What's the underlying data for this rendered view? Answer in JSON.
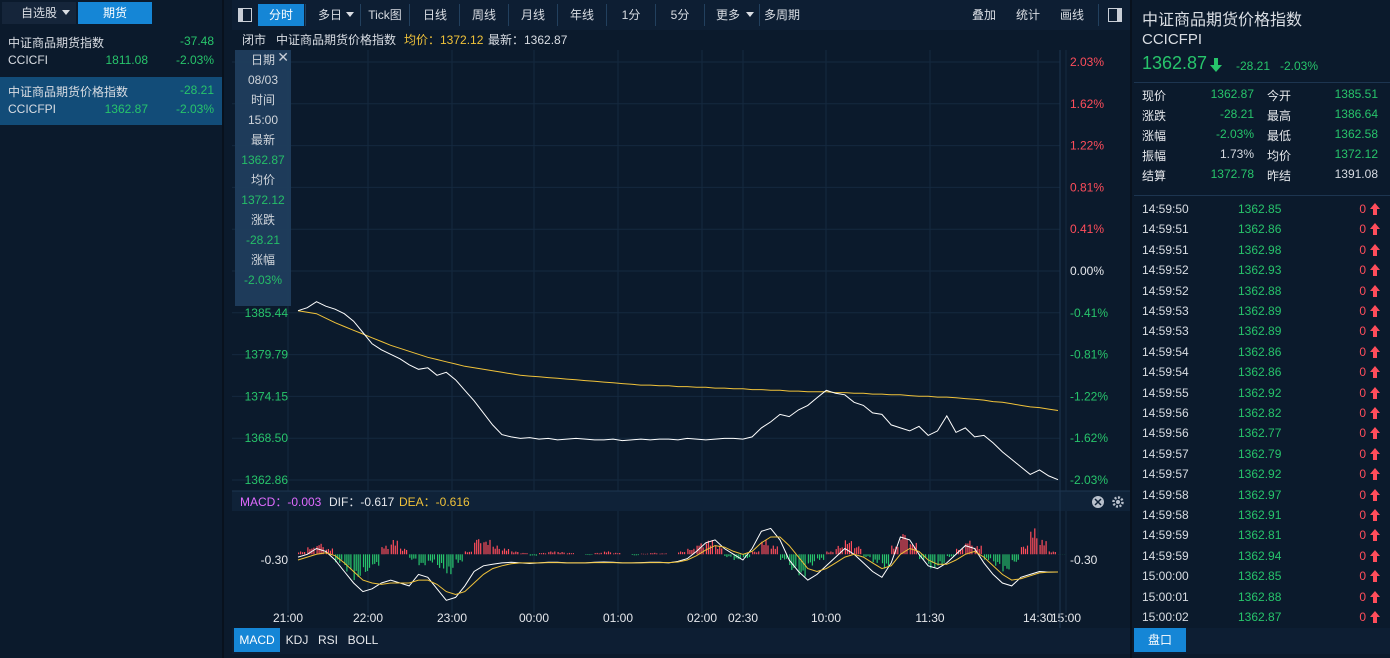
{
  "colors": {
    "up": "#ff4d5b",
    "down": "#27c46b",
    "avg": "#f0c23a",
    "accent": "#1586d6"
  },
  "left": {
    "tabs": [
      {
        "label": "自选股"
      },
      {
        "label": "期货"
      }
    ],
    "items": [
      {
        "name": "中证商品期货指数",
        "code": "CCICFI",
        "price": "1811.08",
        "change": "-37.48",
        "pct": "-2.03%"
      },
      {
        "name": "中证商品期货价格指数",
        "code": "CCICFPI",
        "price": "1362.87",
        "change": "-28.21",
        "pct": "-2.03%"
      }
    ]
  },
  "toolbar": {
    "buttons": [
      "分时",
      "多日",
      "Tick图",
      "日线",
      "周线",
      "月线",
      "年线",
      "1分",
      "5分",
      "更多",
      "多周期"
    ],
    "right_buttons": [
      "叠加",
      "统计",
      "画线"
    ]
  },
  "infobar": {
    "status": "闭市",
    "name": "中证商品期货价格指数",
    "avg_label": "均价：1372.12",
    "latest_label": "最新：1362.87"
  },
  "tooltip": {
    "date_label": "日期",
    "date": "08/03",
    "time_label": "时间",
    "time": "15:00",
    "latest_label": "最新",
    "latest": "1362.87",
    "avg_label": "均价",
    "avg": "1372.12",
    "change_label": "涨跌",
    "change": "-28.21",
    "pct_label": "涨幅",
    "pct": "-2.03%"
  },
  "chart_data": [
    {
      "type": "line",
      "title": "",
      "left_ticks": [
        "1385.44",
        "1379.79",
        "1374.15",
        "1368.50",
        "1362.86"
      ],
      "right_ticks_up": [
        "2.03%",
        "1.62%",
        "1.22%",
        "0.81%",
        "0.41%"
      ],
      "right_zero": "0.00%",
      "right_ticks_down": [
        "-0.41%",
        "-0.81%",
        "-1.22%",
        "-1.62%",
        "-2.03%"
      ],
      "x_ticks": [
        "21:00",
        "22:00",
        "23:00",
        "00:00",
        "01:00",
        "02:00",
        "02:30",
        "10:00",
        "11:30",
        "14:30",
        "15:00"
      ],
      "ylim": [
        1362.86,
        1418.52
      ],
      "prev_settle": 1391.08,
      "series": [
        {
          "name": "最新",
          "values": [
            1385.4,
            1385.8,
            1386.6,
            1386.0,
            1385.6,
            1385.0,
            1384.0,
            1382.5,
            1381.0,
            1380.2,
            1379.6,
            1379.0,
            1378.2,
            1377.6,
            1377.8,
            1376.8,
            1377.2,
            1376.2,
            1374.8,
            1373.4,
            1371.8,
            1370.2,
            1368.9,
            1368.6,
            1368.4,
            1368.5,
            1368.3,
            1368.4,
            1368.2,
            1368.3,
            1368.4,
            1368.3,
            1368.2,
            1368.2,
            1368.3,
            1368.1,
            1368.2,
            1368.3,
            1368.2,
            1368.3,
            1368.3,
            1368.2,
            1368.4,
            1368.3,
            1368.2,
            1368.3,
            1368.4,
            1368.4,
            1368.3,
            1368.6,
            1369.8,
            1370.6,
            1371.6,
            1371.3,
            1372.2,
            1372.8,
            1373.8,
            1374.8,
            1374.4,
            1374.2,
            1373.2,
            1372.8,
            1371.8,
            1371.6,
            1370.2,
            1369.8,
            1369.4,
            1370.0,
            1368.8,
            1369.4,
            1371.4,
            1369.2,
            1369.8,
            1368.6,
            1368.8,
            1367.8,
            1366.6,
            1365.6,
            1364.6,
            1363.6,
            1364.2,
            1363.4,
            1362.9
          ]
        },
        {
          "name": "均价",
          "values": [
            1385.4,
            1385.2,
            1385.0,
            1384.4,
            1383.8,
            1383.3,
            1382.8,
            1382.3,
            1381.8,
            1381.3,
            1380.8,
            1380.4,
            1380.0,
            1379.6,
            1379.2,
            1378.9,
            1378.6,
            1378.3,
            1378.0,
            1377.8,
            1377.6,
            1377.4,
            1377.2,
            1377.0,
            1376.8,
            1376.7,
            1376.6,
            1376.5,
            1376.4,
            1376.3,
            1376.2,
            1376.1,
            1376.0,
            1375.9,
            1375.8,
            1375.7,
            1375.6,
            1375.5,
            1375.5,
            1375.4,
            1375.4,
            1375.3,
            1375.3,
            1375.2,
            1375.2,
            1375.1,
            1375.1,
            1375.0,
            1375.0,
            1374.9,
            1374.9,
            1374.8,
            1374.8,
            1374.7,
            1374.7,
            1374.6,
            1374.6,
            1374.6,
            1374.5,
            1374.5,
            1374.4,
            1374.4,
            1374.3,
            1374.3,
            1374.2,
            1374.2,
            1374.1,
            1374.0,
            1374.0,
            1373.9,
            1373.9,
            1373.8,
            1373.7,
            1373.6,
            1373.5,
            1373.3,
            1373.2,
            1373.0,
            1372.8,
            1372.6,
            1372.5,
            1372.3,
            1372.12
          ]
        }
      ]
    },
    {
      "type": "bar",
      "title": "",
      "macd_label": "MACD：-0.003",
      "dif_label": "DIF：-0.617",
      "dea_label": "DEA：-0.616",
      "left_tick": "-0.30",
      "right_tick": "-0.30",
      "ylim": [
        -1.8,
        1.4
      ],
      "series": [
        {
          "name": "MACD",
          "values": [
            0.1,
            0.25,
            0.4,
            0.2,
            -0.3,
            -0.6,
            -0.9,
            -0.7,
            -0.4,
            0.3,
            0.5,
            0.2,
            -0.2,
            -0.4,
            -0.3,
            -0.5,
            -0.7,
            -0.3,
            0.1,
            0.6,
            0.5,
            0.3,
            0.2,
            0.1,
            0.05,
            -0.05,
            0.05,
            0.1,
            0.08,
            0.05,
            0.0,
            -0.03,
            0.05,
            0.1,
            0.05,
            0.0,
            -0.04,
            0.02,
            0.05,
            0.03,
            0.0,
            0.1,
            0.2,
            0.4,
            0.5,
            0.3,
            -0.1,
            -0.2,
            -0.15,
            0.1,
            0.5,
            0.3,
            -0.2,
            -0.6,
            -0.8,
            -0.4,
            -0.2,
            0.1,
            0.3,
            0.5,
            0.3,
            -0.1,
            -0.3,
            -0.5,
            0.3,
            0.8,
            0.4,
            -0.2,
            -0.5,
            -0.4,
            -0.1,
            0.2,
            0.5,
            0.3,
            -0.2,
            -0.4,
            -0.6,
            -0.3,
            0.3,
            0.9,
            0.5,
            0.1,
            -0.003
          ]
        },
        {
          "name": "DIF",
          "values": [
            -0.1,
            0.0,
            0.2,
            0.1,
            -0.2,
            -0.6,
            -1.0,
            -1.3,
            -1.2,
            -1.0,
            -0.9,
            -1.0,
            -1.1,
            -0.7,
            -0.8,
            -1.2,
            -1.6,
            -1.5,
            -1.1,
            -0.6,
            -0.4,
            -0.35,
            -0.3,
            -0.28,
            -0.3,
            -0.32,
            -0.3,
            -0.28,
            -0.28,
            -0.3,
            -0.3,
            -0.3,
            -0.28,
            -0.27,
            -0.28,
            -0.3,
            -0.3,
            -0.29,
            -0.28,
            -0.28,
            -0.3,
            -0.25,
            -0.15,
            0.1,
            0.4,
            0.5,
            0.2,
            0.0,
            -0.2,
            0.2,
            0.8,
            0.9,
            0.5,
            -0.2,
            -0.6,
            -0.9,
            -0.7,
            -0.4,
            -0.1,
            0.2,
            0.0,
            -0.3,
            -0.6,
            -0.8,
            -0.3,
            0.6,
            0.5,
            0.0,
            -0.4,
            -0.5,
            -0.3,
            0.0,
            0.3,
            0.2,
            -0.3,
            -0.7,
            -1.0,
            -1.1,
            -0.8,
            -0.7,
            -0.6,
            -0.62,
            -0.617
          ]
        },
        {
          "name": "DEA",
          "values": [
            -0.2,
            -0.1,
            0.0,
            0.05,
            -0.05,
            -0.3,
            -0.6,
            -0.9,
            -1.0,
            -1.05,
            -1.0,
            -1.0,
            -1.0,
            -0.9,
            -0.9,
            -1.05,
            -1.3,
            -1.4,
            -1.3,
            -1.0,
            -0.7,
            -0.5,
            -0.4,
            -0.33,
            -0.3,
            -0.3,
            -0.3,
            -0.29,
            -0.29,
            -0.3,
            -0.3,
            -0.3,
            -0.29,
            -0.29,
            -0.29,
            -0.3,
            -0.3,
            -0.3,
            -0.29,
            -0.29,
            -0.29,
            -0.27,
            -0.2,
            -0.05,
            0.15,
            0.3,
            0.25,
            0.1,
            0.0,
            0.1,
            0.4,
            0.6,
            0.6,
            0.3,
            -0.1,
            -0.5,
            -0.6,
            -0.5,
            -0.3,
            -0.1,
            0.0,
            -0.1,
            -0.3,
            -0.5,
            -0.4,
            0.0,
            0.2,
            0.1,
            -0.2,
            -0.35,
            -0.35,
            -0.2,
            0.0,
            0.1,
            -0.1,
            -0.4,
            -0.7,
            -0.9,
            -0.85,
            -0.75,
            -0.65,
            -0.62,
            -0.616
          ]
        }
      ]
    }
  ],
  "indicator_tabs": [
    "MACD",
    "KDJ",
    "RSI",
    "BOLL"
  ],
  "right": {
    "title": "中证商品期货价格指数",
    "code": "CCICFPI",
    "price": "1362.87",
    "change": "-28.21",
    "pct": "-2.03%",
    "quotes": [
      {
        "l1": "现价",
        "v1": "1362.87",
        "l2": "今开",
        "v2": "1385.51"
      },
      {
        "l1": "涨跌",
        "v1": "-28.21",
        "l2": "最高",
        "v2": "1386.64"
      },
      {
        "l1": "涨幅",
        "v1": "-2.03%",
        "l2": "最低",
        "v2": "1362.58"
      },
      {
        "l1": "振幅",
        "v1": "1.73%",
        "l2": "均价",
        "v2": "1372.12"
      },
      {
        "l1": "结算",
        "v1": "1372.78",
        "l2": "昨结",
        "v2": "1391.08"
      }
    ],
    "ticks": [
      {
        "t": "14:59:50",
        "p": "1362.85",
        "v": "0"
      },
      {
        "t": "14:59:51",
        "p": "1362.86",
        "v": "0"
      },
      {
        "t": "14:59:51",
        "p": "1362.98",
        "v": "0"
      },
      {
        "t": "14:59:52",
        "p": "1362.93",
        "v": "0"
      },
      {
        "t": "14:59:52",
        "p": "1362.88",
        "v": "0"
      },
      {
        "t": "14:59:53",
        "p": "1362.89",
        "v": "0"
      },
      {
        "t": "14:59:53",
        "p": "1362.89",
        "v": "0"
      },
      {
        "t": "14:59:54",
        "p": "1362.86",
        "v": "0"
      },
      {
        "t": "14:59:54",
        "p": "1362.86",
        "v": "0"
      },
      {
        "t": "14:59:55",
        "p": "1362.92",
        "v": "0"
      },
      {
        "t": "14:59:56",
        "p": "1362.82",
        "v": "0"
      },
      {
        "t": "14:59:56",
        "p": "1362.77",
        "v": "0"
      },
      {
        "t": "14:59:57",
        "p": "1362.79",
        "v": "0"
      },
      {
        "t": "14:59:57",
        "p": "1362.92",
        "v": "0"
      },
      {
        "t": "14:59:58",
        "p": "1362.97",
        "v": "0"
      },
      {
        "t": "14:59:58",
        "p": "1362.91",
        "v": "0"
      },
      {
        "t": "14:59:59",
        "p": "1362.81",
        "v": "0"
      },
      {
        "t": "14:59:59",
        "p": "1362.94",
        "v": "0"
      },
      {
        "t": "15:00:00",
        "p": "1362.85",
        "v": "0"
      },
      {
        "t": "15:00:01",
        "p": "1362.88",
        "v": "0"
      },
      {
        "t": "15:00:02",
        "p": "1362.87",
        "v": "0"
      }
    ],
    "bottom_tab": "盘口"
  }
}
